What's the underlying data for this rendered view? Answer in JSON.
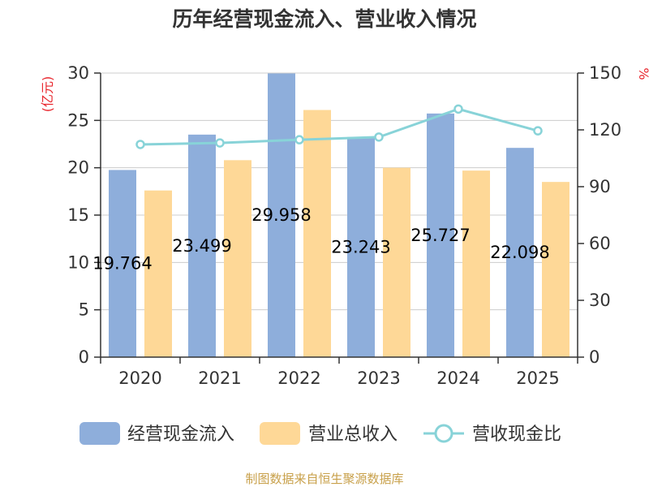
{
  "chart_data": {
    "type": "bar",
    "title": "历年经营现金流入、营业收入情况",
    "categories": [
      "2020",
      "2021",
      "2022",
      "2023",
      "2024",
      "2025"
    ],
    "series": [
      {
        "name": "经营现金流入",
        "type": "bar",
        "axis": "left",
        "color": "#8eaedb",
        "values": [
          19.764,
          23.499,
          29.958,
          23.243,
          25.727,
          22.098
        ],
        "labels": [
          "19.764",
          "23.499",
          "29.958",
          "23.243",
          "25.727",
          "22.098"
        ]
      },
      {
        "name": "营业总收入",
        "type": "bar",
        "axis": "left",
        "color": "#fed897",
        "values": [
          17.6,
          20.8,
          26.1,
          20.0,
          19.7,
          18.5
        ]
      },
      {
        "name": "营收现金比",
        "type": "line",
        "axis": "right",
        "color": "#88d3d8",
        "values": [
          112.3,
          113.1,
          114.8,
          116.2,
          131.0,
          119.5
        ]
      }
    ],
    "ylabel_left": "(亿元)",
    "ylabel_right": "%",
    "ylim_left": [
      0,
      30
    ],
    "ylim_right": [
      0,
      150
    ],
    "yticks_left": [
      "0",
      "5",
      "10",
      "15",
      "20",
      "25",
      "30"
    ],
    "yticks_right": [
      "0",
      "30",
      "60",
      "90",
      "120",
      "150"
    ],
    "grid": true,
    "legend": "bottom"
  },
  "source": "制图数据来自恒生聚源数据库"
}
